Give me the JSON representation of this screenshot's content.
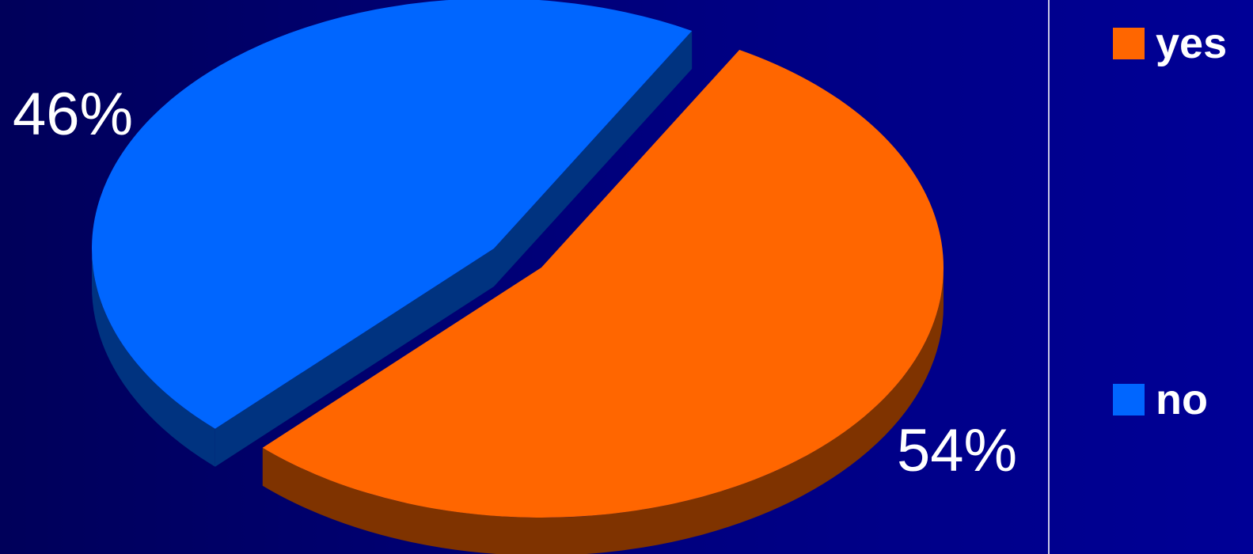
{
  "chart_data": {
    "type": "pie",
    "style": "3d-exploded",
    "legend_position": "right",
    "slices": [
      {
        "label": "yes",
        "value": 54,
        "display": "54%",
        "color": "#ff6600",
        "side_color": "#7f3300"
      },
      {
        "label": "no",
        "value": 46,
        "display": "46%",
        "color": "#0066ff",
        "side_color": "#003380"
      }
    ]
  },
  "legend": {
    "items": [
      {
        "label": "yes",
        "color": "#ff6600"
      },
      {
        "label": "no",
        "color": "#0066ff"
      }
    ]
  }
}
